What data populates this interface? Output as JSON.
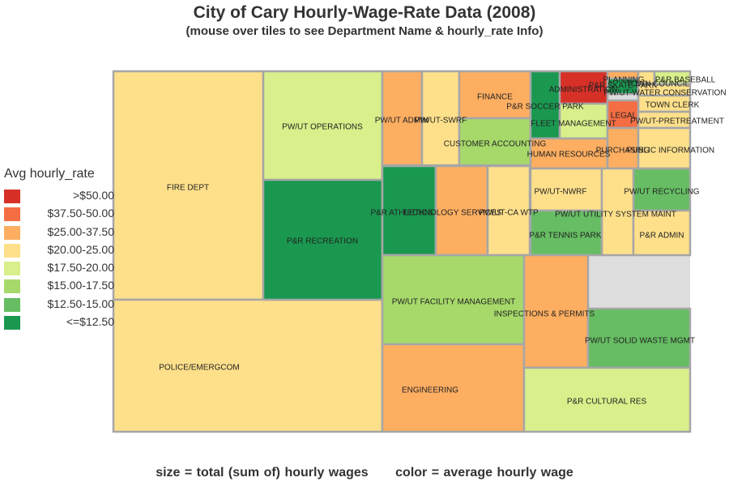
{
  "title": "City of Cary Hourly-Wage-Rate Data (2008)",
  "subtitle": "(mouse over tiles to see Department Name & hourly_rate Info)",
  "legend": {
    "title": "Avg hourly_rate",
    "items": [
      {
        "label": ">$50.00",
        "color": "#d73027"
      },
      {
        "label": "$37.50-50.00",
        "color": "#f46d43"
      },
      {
        "label": "$25.00-37.50",
        "color": "#fdae61"
      },
      {
        "label": "$20.00-25.00",
        "color": "#fee08b"
      },
      {
        "label": "$17.50-20.00",
        "color": "#d9ef8b"
      },
      {
        "label": "$15.00-17.50",
        "color": "#a6d96a"
      },
      {
        "label": "$12.50-15.00",
        "color": "#66bd63"
      },
      {
        "label": "<=$12.50",
        "color": "#1a9850"
      }
    ]
  },
  "footer": {
    "size_note": "size = total (sum of) hourly wages",
    "color_note": "color = average hourly wage"
  },
  "chart_data": {
    "type": "treemap",
    "size_measure": "total (sum of) hourly wages",
    "color_measure": "average hourly wage",
    "departments": [
      {
        "name": "FIRE DEPT",
        "color_bin": "$20.00-25.00"
      },
      {
        "name": "POLICE/EMERGCOM",
        "color_bin": "$20.00-25.00"
      },
      {
        "name": "PW/UT OPERATIONS",
        "color_bin": "$17.50-20.00"
      },
      {
        "name": "P&R RECREATION",
        "color_bin": "<=$12.50"
      },
      {
        "name": "PW/UT ADMIN",
        "color_bin": "$25.00-37.50"
      },
      {
        "name": "PW/UT-SWRF",
        "color_bin": "$20.00-25.00"
      },
      {
        "name": "FINANCE",
        "color_bin": "$25.00-37.50"
      },
      {
        "name": "CUSTOMER ACCOUNTING",
        "color_bin": "$15.00-17.50"
      },
      {
        "name": "P&R SOCCER PARK",
        "color_bin": "<=$12.50"
      },
      {
        "name": "ADMINISTRATION",
        "color_bin": ">$50.00"
      },
      {
        "name": "P&R SKATE PARK",
        "color_bin": "<=$12.50"
      },
      {
        "name": "PLANNING",
        "color_bin": "$25.00-37.50"
      },
      {
        "name": "TOWN COUNCIL",
        "color_bin": "$20.00-25.00"
      },
      {
        "name": "P&R BASEBALL",
        "color_bin": "$17.50-20.00"
      },
      {
        "name": "PW/UT-WATER CONSERVATION",
        "color_bin": "$20.00-25.00"
      },
      {
        "name": "TOWN CLERK",
        "color_bin": "$20.00-25.00"
      },
      {
        "name": "FLEET MANAGEMENT",
        "color_bin": "$17.50-20.00"
      },
      {
        "name": "LEGAL",
        "color_bin": "$37.50-50.00"
      },
      {
        "name": "PW/UT-PRETREATMENT",
        "color_bin": "$20.00-25.00"
      },
      {
        "name": "HUMAN RESOURCES",
        "color_bin": "$25.00-37.50"
      },
      {
        "name": "PURCHASING",
        "color_bin": "$25.00-37.50"
      },
      {
        "name": "PUBLIC INFORMATION",
        "color_bin": "$20.00-25.00"
      },
      {
        "name": "P&R ATHLETICS",
        "color_bin": "<=$12.50"
      },
      {
        "name": "TECHNOLOGY SERVICES",
        "color_bin": "$25.00-37.50"
      },
      {
        "name": "PW/UT-CA WTP",
        "color_bin": "$20.00-25.00"
      },
      {
        "name": "PW/UT-NWRF",
        "color_bin": "$20.00-25.00"
      },
      {
        "name": "PW/UT RECYCLING",
        "color_bin": "$12.50-15.00"
      },
      {
        "name": "PW/UT UTILITY SYSTEM MAINT",
        "color_bin": "$20.00-25.00"
      },
      {
        "name": "P&R TENNIS PARK",
        "color_bin": "$12.50-15.00"
      },
      {
        "name": "P&R ADMIN",
        "color_bin": "$20.00-25.00"
      },
      {
        "name": "PW/UT FACILITY MANAGEMENT",
        "color_bin": "$15.00-17.50"
      },
      {
        "name": "ENGINEERING",
        "color_bin": "$25.00-37.50"
      },
      {
        "name": "INSPECTIONS & PERMITS",
        "color_bin": "$25.00-37.50"
      },
      {
        "name": "PW/UT SOLID WASTE MGMT",
        "color_bin": "$12.50-15.00"
      },
      {
        "name": "P&R CULTURAL RES",
        "color_bin": "$17.50-20.00"
      }
    ]
  }
}
